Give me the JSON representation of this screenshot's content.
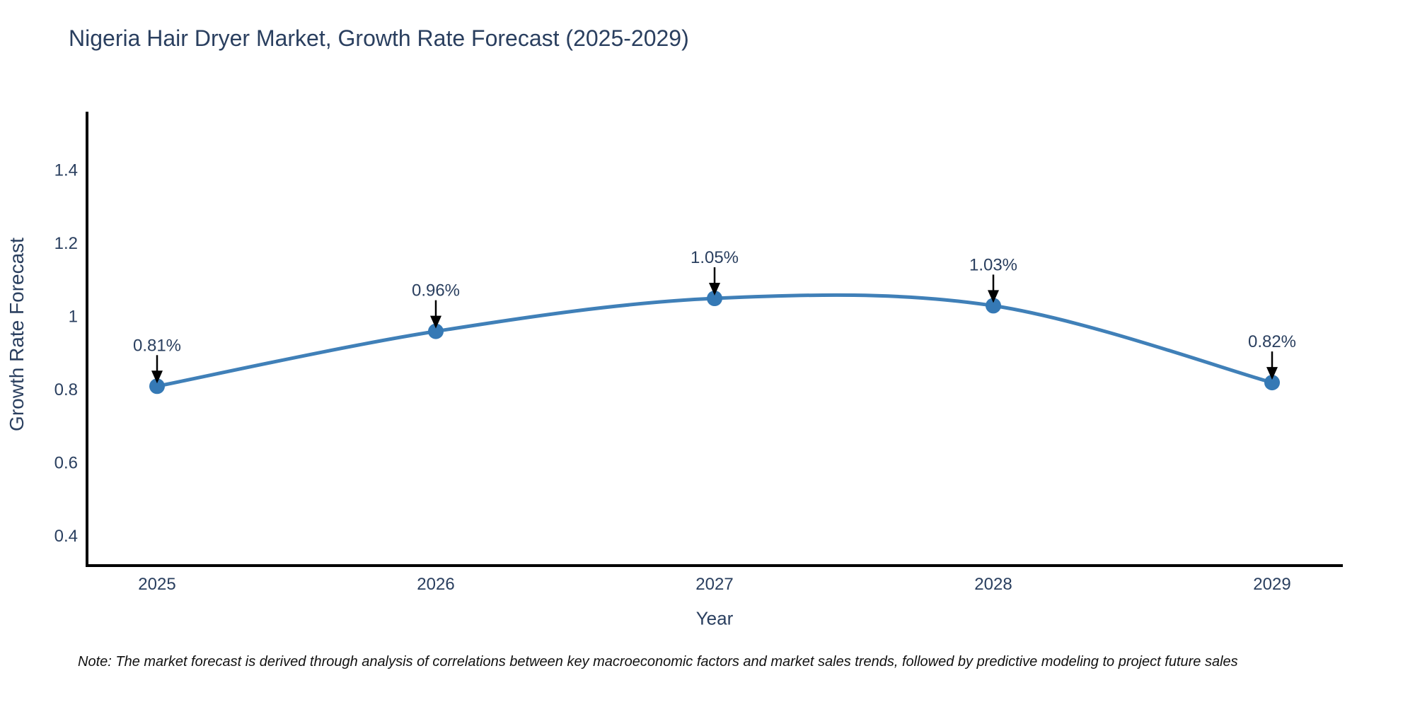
{
  "chart_data": {
    "type": "line",
    "title": "Nigeria Hair Dryer Market, Growth Rate Forecast (2025-2029)",
    "xlabel": "Year",
    "ylabel": "Growth Rate Forecast",
    "categories": [
      "2025",
      "2026",
      "2027",
      "2028",
      "2029"
    ],
    "series": [
      {
        "name": "Growth Rate Forecast",
        "values": [
          0.81,
          0.96,
          1.05,
          1.03,
          0.82
        ],
        "data_labels": [
          "0.81%",
          "0.96%",
          "1.05%",
          "1.03%",
          "0.82%"
        ]
      }
    ],
    "ytick_labels": [
      "0.4",
      "0.6",
      "0.8",
      "1",
      "1.2",
      "1.4"
    ],
    "ytick_values": [
      0.4,
      0.6,
      0.8,
      1.0,
      1.2,
      1.4
    ],
    "ylim": [
      0.32,
      1.56
    ],
    "grid": false,
    "legend": false,
    "line_shape": "spline",
    "annotation_style": "value label with downward black arrow to marker",
    "colors": {
      "line": "#4080b8",
      "marker": "#3579b5",
      "axis": "#000000",
      "text": "#2a3f5f",
      "annotation_arrow": "#000000",
      "background": "#ffffff"
    }
  },
  "footnote": "Note: The market forecast is derived through analysis of correlations between key macroeconomic factors and market sales trends, followed by predictive modeling to project future sales"
}
